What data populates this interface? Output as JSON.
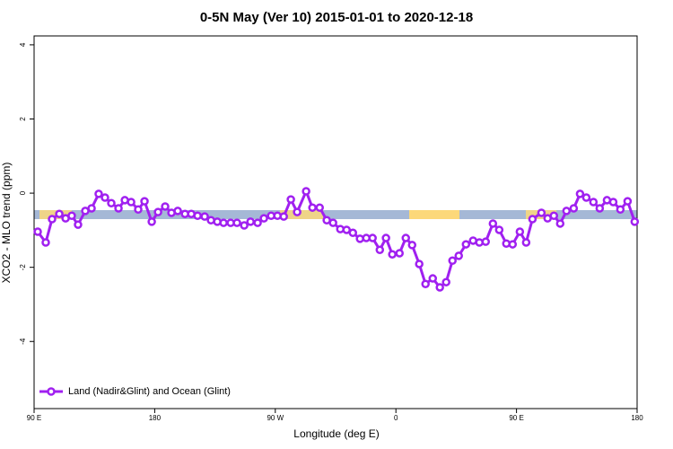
{
  "chart_data": {
    "type": "line",
    "title": "0-5N May (Ver 10)   2015-01-01 to 2020-12-18",
    "xlabel": "Longitude (deg E)",
    "ylabel": "XCO2 - MLO trend (ppm)",
    "xlim": [
      90,
      540
    ],
    "ylim": [
      -5.81,
      4.24
    ],
    "xticks": [
      {
        "value": 90,
        "label": "90 E"
      },
      {
        "value": 180,
        "label": "180"
      },
      {
        "value": 270,
        "label": "90 W"
      },
      {
        "value": 360,
        "label": "0"
      },
      {
        "value": 450,
        "label": "90 E"
      },
      {
        "value": 540,
        "label": "180"
      }
    ],
    "yticks": [
      -4,
      -2,
      0,
      2,
      4
    ],
    "legend": "bottom-left",
    "x": [
      92.7,
      98.7,
      103.4,
      108.8,
      113.5,
      118.1,
      122.8,
      128.2,
      132.9,
      138.2,
      142.9,
      147.6,
      153,
      157.7,
      162.4,
      167.7,
      172.4,
      177.8,
      182.5,
      187.8,
      192.5,
      197.2,
      202.6,
      207.3,
      212,
      217.3,
      222,
      226.7,
      231.4,
      236.7,
      241.4,
      246.8,
      251.5,
      256.8,
      261.5,
      266.9,
      271.6,
      276.3,
      281.6,
      286.3,
      293,
      297.7,
      303.1,
      308.4,
      313.1,
      318.5,
      323.2,
      327.9,
      333.2,
      337.9,
      342.6,
      348,
      352.6,
      357.3,
      362.7,
      367.4,
      372.1,
      377.4,
      382.1,
      387.5,
      392.8,
      397.5,
      402.2,
      406.9,
      412.3,
      417.6,
      422.3,
      427,
      432.4,
      437.1,
      442.4,
      447.1,
      452.5,
      457.2,
      461.9,
      468.6,
      473.2,
      477.9,
      482.6,
      487.3,
      492.7,
      497.4,
      502.1,
      507.4,
      512.1,
      517.5,
      522.2,
      527.5,
      532.9,
      538.2
    ],
    "series": [
      {
        "name": "Land (Nadir&Glint) and Ocean (Glint)",
        "color": "#a020f0",
        "values": [
          -1.04,
          -1.33,
          -0.7,
          -0.56,
          -0.68,
          -0.61,
          -0.85,
          -0.48,
          -0.41,
          -0.02,
          -0.12,
          -0.27,
          -0.41,
          -0.19,
          -0.24,
          -0.44,
          -0.22,
          -0.77,
          -0.51,
          -0.36,
          -0.53,
          -0.48,
          -0.56,
          -0.56,
          -0.61,
          -0.63,
          -0.73,
          -0.77,
          -0.8,
          -0.8,
          -0.8,
          -0.87,
          -0.77,
          -0.8,
          -0.68,
          -0.61,
          -0.61,
          -0.63,
          -0.17,
          -0.51,
          0.05,
          -0.39,
          -0.39,
          -0.73,
          -0.8,
          -0.97,
          -0.99,
          -1.07,
          -1.23,
          -1.21,
          -1.21,
          -1.53,
          -1.21,
          -1.65,
          -1.62,
          -1.21,
          -1.4,
          -1.91,
          -2.45,
          -2.3,
          -2.54,
          -2.4,
          -1.82,
          -1.69,
          -1.38,
          -1.28,
          -1.33,
          -1.31,
          -0.82,
          -0.99,
          -1.36,
          -1.38,
          -1.04,
          -1.33,
          -0.7,
          -0.53,
          -0.68,
          -0.61,
          -0.82,
          -0.48,
          -0.41,
          -0.02,
          -0.12,
          -0.24,
          -0.41,
          -0.19,
          -0.24,
          -0.44,
          -0.22,
          -0.77
        ]
      }
    ]
  }
}
